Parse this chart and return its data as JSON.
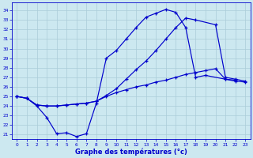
{
  "xlabel": "Graphe des températures (°c)",
  "bg_color": "#cce8f0",
  "grid_color": "#aaccd8",
  "line_color": "#0000cc",
  "x_ticks": [
    0,
    1,
    2,
    3,
    4,
    5,
    6,
    7,
    8,
    9,
    10,
    11,
    12,
    13,
    14,
    15,
    16,
    17,
    18,
    19,
    20,
    21,
    22,
    23
  ],
  "y_ticks": [
    21,
    22,
    23,
    24,
    25,
    26,
    27,
    28,
    29,
    30,
    31,
    32,
    33,
    34
  ],
  "ylim": [
    20.5,
    34.8
  ],
  "xlim": [
    -0.5,
    23.5
  ],
  "line1_x": [
    0,
    1,
    2,
    3,
    4,
    5,
    6,
    7,
    8,
    9,
    10,
    11,
    12,
    13,
    14,
    15,
    16,
    17,
    18,
    19,
    21,
    22
  ],
  "line1_y": [
    25.0,
    24.8,
    24.0,
    22.8,
    21.1,
    21.2,
    20.8,
    21.1,
    24.3,
    29.0,
    29.8,
    31.0,
    32.2,
    33.3,
    33.7,
    34.1,
    33.8,
    32.2,
    27.0,
    27.2,
    26.8,
    26.7
  ],
  "line2_x": [
    0,
    1,
    2,
    3,
    4,
    5,
    6,
    7,
    8,
    9,
    10,
    11,
    12,
    13,
    14,
    15,
    16,
    17,
    18,
    20,
    21,
    22,
    23
  ],
  "line2_y": [
    25.0,
    24.8,
    24.1,
    24.0,
    24.0,
    24.1,
    24.2,
    24.3,
    24.5,
    25.1,
    25.8,
    26.8,
    27.8,
    28.7,
    29.8,
    31.0,
    32.2,
    33.2,
    33.0,
    32.5,
    27.0,
    26.8,
    26.6
  ],
  "line3_x": [
    0,
    1,
    2,
    3,
    4,
    5,
    6,
    7,
    8,
    9,
    10,
    11,
    12,
    13,
    14,
    15,
    16,
    17,
    18,
    19,
    20,
    21,
    22,
    23
  ],
  "line3_y": [
    25.0,
    24.8,
    24.1,
    24.0,
    24.0,
    24.1,
    24.2,
    24.3,
    24.5,
    25.0,
    25.4,
    25.7,
    26.0,
    26.2,
    26.5,
    26.7,
    27.0,
    27.3,
    27.5,
    27.7,
    27.9,
    26.8,
    26.6,
    26.5
  ]
}
